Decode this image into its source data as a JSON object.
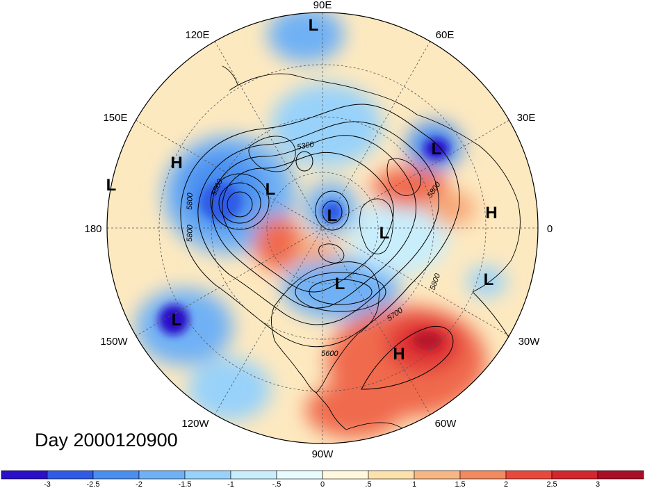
{
  "map": {
    "projection": "north-polar-stereographic",
    "contour_field_units": "gpm",
    "contour_labels": [
      "5300",
      "5500",
      "5800",
      "5800",
      "5800",
      "5700",
      "5600",
      "5800"
    ],
    "longitude_labels": [
      "90E",
      "60E",
      "30E",
      "0",
      "30W",
      "60W",
      "90W",
      "120W",
      "150W",
      "180",
      "150E",
      "120E"
    ],
    "pressure_centers": [
      {
        "type": "L",
        "label": "L"
      },
      {
        "type": "L",
        "label": "L"
      },
      {
        "type": "L",
        "label": "L"
      },
      {
        "type": "L",
        "label": "L"
      },
      {
        "type": "L",
        "label": "L"
      },
      {
        "type": "L",
        "label": "L"
      },
      {
        "type": "L",
        "label": "L"
      },
      {
        "type": "L",
        "label": "L"
      },
      {
        "type": "L",
        "label": "L"
      },
      {
        "type": "H",
        "label": "H"
      },
      {
        "type": "H",
        "label": "H"
      },
      {
        "type": "H",
        "label": "H"
      }
    ]
  },
  "caption": "Day 2000120900",
  "colorbar": {
    "tick_labels": [
      "-3",
      "-2.5",
      "-2",
      "-1.5",
      "-1",
      "-.5",
      "0",
      ".5",
      "1",
      "1.5",
      "2",
      "2.5",
      "3"
    ],
    "colors": [
      "#2a10c8",
      "#2f5be6",
      "#4a8ff0",
      "#6fb1f5",
      "#98d2fa",
      "#c8eefc",
      "#ffffff",
      "#fff3c6",
      "#fbd79a",
      "#f7a877",
      "#f06a4e",
      "#df3334",
      "#b8142a"
    ]
  }
}
